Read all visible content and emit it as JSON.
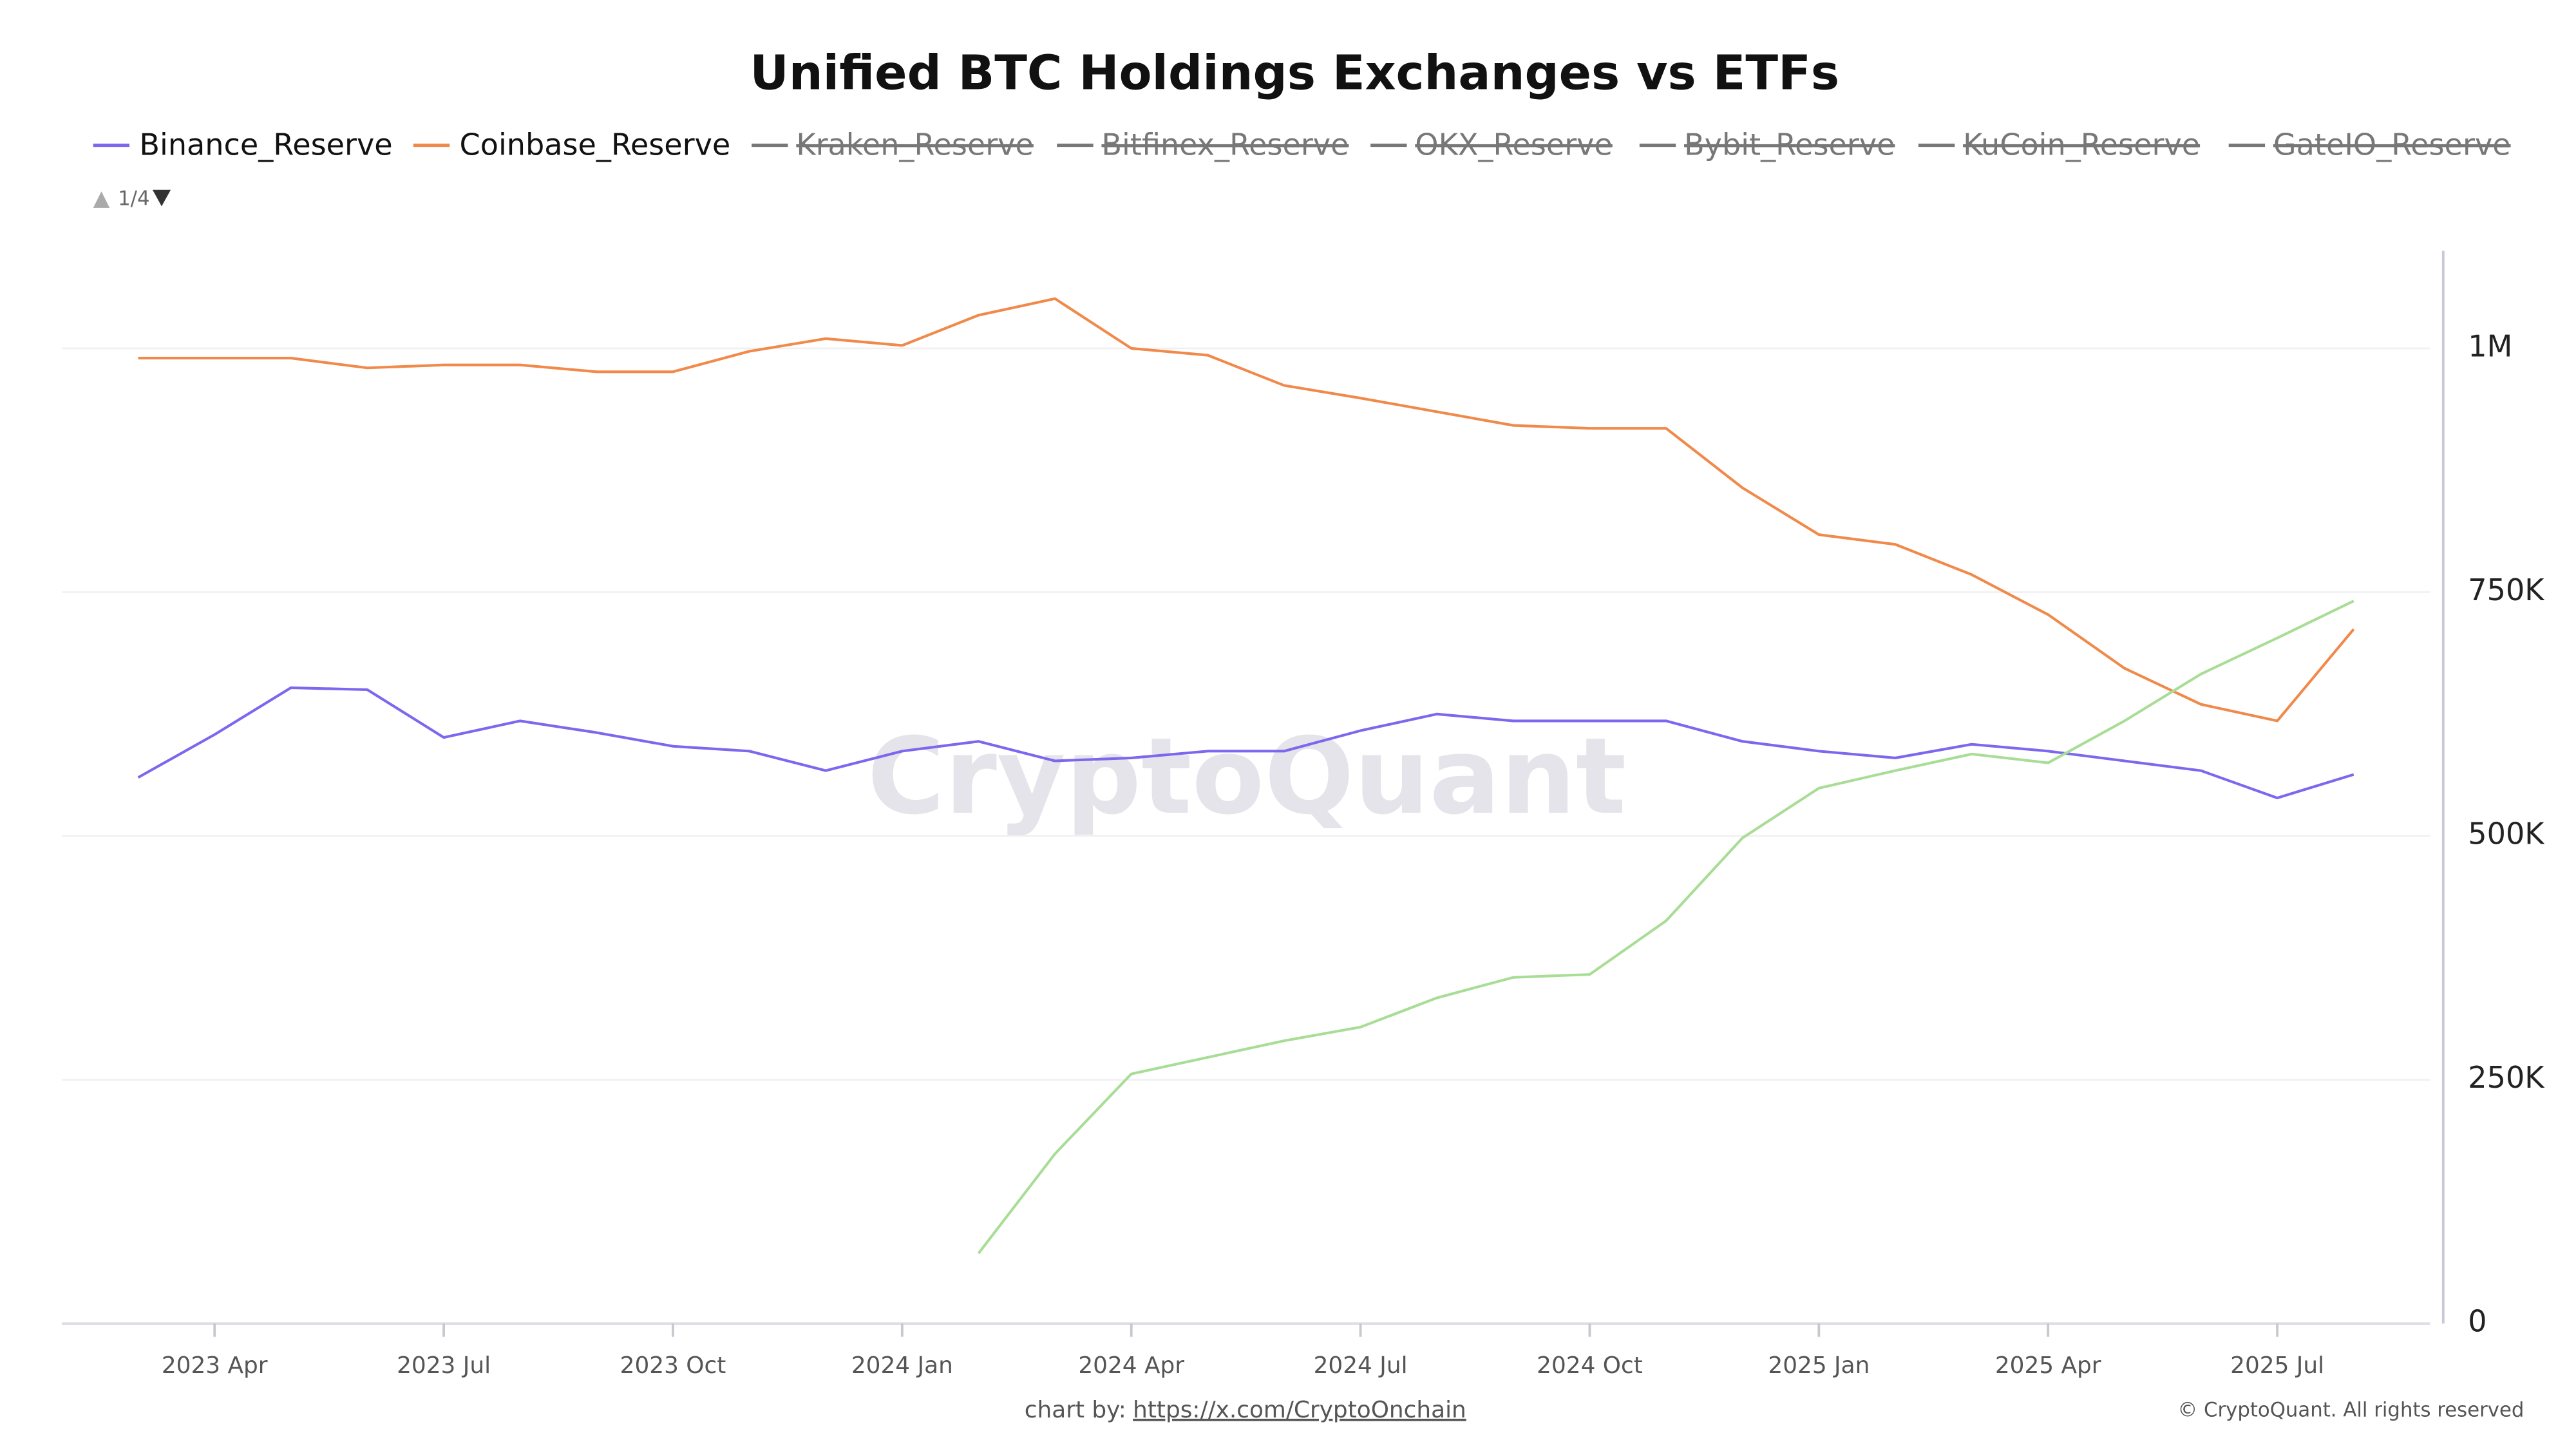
{
  "chart_data": {
    "type": "line",
    "title": "Unified BTC Holdings Exchanges vs ETFs",
    "x": [
      "2023-03",
      "2023-04",
      "2023-05",
      "2023-06",
      "2023-07",
      "2023-08",
      "2023-09",
      "2023-10",
      "2023-11",
      "2023-12",
      "2024-01",
      "2024-02",
      "2024-03",
      "2024-04",
      "2024-05",
      "2024-06",
      "2024-07",
      "2024-08",
      "2024-09",
      "2024-10",
      "2024-11",
      "2024-12",
      "2025-01",
      "2025-02",
      "2025-03",
      "2025-04",
      "2025-05",
      "2025-06",
      "2025-07",
      "2025-08"
    ],
    "series": [
      {
        "name": "Binance_Reserve",
        "color": "#7b68ee",
        "values": [
          560000,
          604000,
          652000,
          650000,
          601000,
          618000,
          606000,
          592000,
          587000,
          567000,
          587000,
          597000,
          577000,
          580000,
          587000,
          587000,
          608000,
          625000,
          618000,
          618000,
          618000,
          597000,
          587000,
          580000,
          594000,
          587000,
          577000,
          567000,
          539000,
          563000
        ]
      },
      {
        "name": "Coinbase_Reserve",
        "color": "#f0894a",
        "values": [
          990000,
          990000,
          990000,
          980000,
          983000,
          983000,
          976000,
          976000,
          997000,
          1010000,
          1003000,
          1034000,
          1051000,
          1000000,
          993000,
          962000,
          949000,
          935000,
          921000,
          918000,
          918000,
          857000,
          809000,
          799000,
          768000,
          727000,
          672000,
          635000,
          618000,
          712000
        ]
      },
      {
        "color": "#a8dd95",
        "values": [
          null,
          null,
          null,
          null,
          null,
          null,
          null,
          null,
          null,
          null,
          null,
          72000,
          174000,
          256000,
          273000,
          290000,
          304000,
          334000,
          355000,
          358000,
          413000,
          498000,
          549000,
          567000,
          584000,
          575000,
          618000,
          666000,
          703000,
          741000
        ]
      }
    ],
    "legend_inactive": [
      "Kraken_Reserve",
      "Bitfinex_Reserve",
      "OKX_Reserve",
      "Bybit_Reserve",
      "KuCoin_Reserve",
      "GateIO_Reserve"
    ],
    "legend_inactive_color": "#777777",
    "legend_page": "1/4",
    "xlim": [
      "2023-02",
      "2025-09"
    ],
    "xticks": [
      {
        "value": "2023-04",
        "label": "2023 Apr"
      },
      {
        "value": "2023-07",
        "label": "2023 Jul"
      },
      {
        "value": "2023-10",
        "label": "2023 Oct"
      },
      {
        "value": "2024-01",
        "label": "2024 Jan"
      },
      {
        "value": "2024-04",
        "label": "2024 Apr"
      },
      {
        "value": "2024-07",
        "label": "2024 Jul"
      },
      {
        "value": "2024-10",
        "label": "2024 Oct"
      },
      {
        "value": "2025-01",
        "label": "2025 Jan"
      },
      {
        "value": "2025-04",
        "label": "2025 Apr"
      },
      {
        "value": "2025-07",
        "label": "2025 Jul"
      }
    ],
    "ylim": [
      0,
      1100000
    ],
    "yticks": [
      {
        "value": 0,
        "label": "0"
      },
      {
        "value": 250000,
        "label": "250K"
      },
      {
        "value": 500000,
        "label": "500K"
      },
      {
        "value": 750000,
        "label": "750K"
      },
      {
        "value": 1000000,
        "label": "1M"
      }
    ],
    "y_axis_side": "right",
    "grid": true,
    "watermark": "CryptoQuant",
    "credit_prefix": "chart by:",
    "credit_link": "https://x.com/CryptoOnchain",
    "copyright": "© CryptoQuant. All rights reserved"
  }
}
